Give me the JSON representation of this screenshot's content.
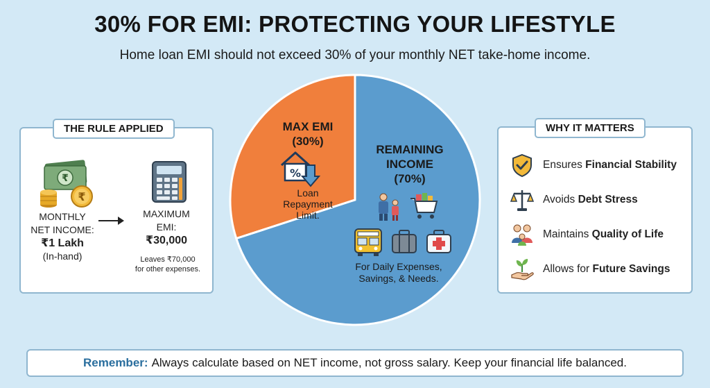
{
  "title": "30% FOR EMI: PROTECTING YOUR LIFESTYLE",
  "subtitle": "Home loan EMI should not exceed 30% of your monthly NET take-home income.",
  "rule_panel": {
    "tag": "THE RULE APPLIED",
    "income_label_1": "MONTHLY",
    "income_label_2": "NET INCOME:",
    "income_value": "₹1 Lakh",
    "income_note": "(In-hand)",
    "emi_label_1": "MAXIMUM",
    "emi_label_2": "EMI:",
    "emi_value": "₹30,000",
    "leaves_1": "Leaves ₹70,000",
    "leaves_2": "for other expenses."
  },
  "matters_panel": {
    "tag": "WHY IT MATTERS",
    "items": [
      {
        "icon": "shield-check-icon",
        "prefix": "Ensures ",
        "bold": "Financial Stability"
      },
      {
        "icon": "balance-scale-icon",
        "prefix": "Avoids ",
        "bold": "Debt Stress"
      },
      {
        "icon": "family-icon",
        "prefix": "Maintains ",
        "bold": "Quality of Life"
      },
      {
        "icon": "plant-hand-icon",
        "prefix": "Allows for ",
        "bold": "Future Savings"
      }
    ]
  },
  "chart_data": {
    "type": "pie",
    "slices": [
      {
        "label_1": "MAX EMI",
        "label_2": "(30%)",
        "value": 30,
        "color": "#f07f3c",
        "desc_1": "Loan",
        "desc_2": "Repayment",
        "desc_3": "Limit.",
        "icon": "home-percent-icon"
      },
      {
        "label_1": "REMAINING",
        "label_2": "INCOME",
        "label_3": "(70%)",
        "value": 70,
        "color": "#5b9cce",
        "desc_1": "For Daily Expenses,",
        "desc_2": "Savings, & Needs.",
        "icons": [
          "family-icon",
          "shopping-cart-icon",
          "school-bus-icon",
          "suitcase-icon",
          "first-aid-icon"
        ]
      }
    ]
  },
  "remember": {
    "lead": "Remember:",
    "text": "Always calculate based on NET income, not gross salary. Keep your financial life balanced."
  }
}
